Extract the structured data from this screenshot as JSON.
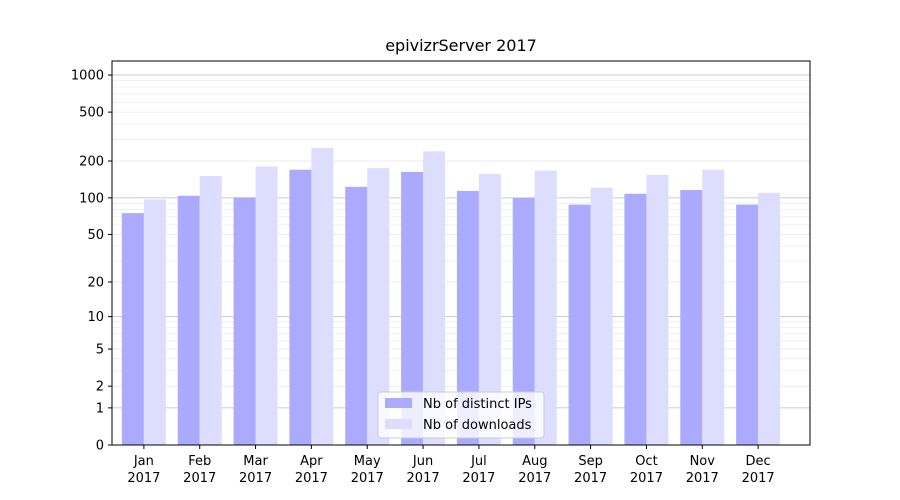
{
  "chart_data": {
    "type": "bar",
    "title": "epivizrServer 2017",
    "xlabel": "",
    "ylabel": "",
    "yscale": "symlog",
    "ylim": [
      0,
      1300
    ],
    "yticks": [
      0,
      1,
      2,
      5,
      10,
      20,
      50,
      100,
      200,
      500,
      1000
    ],
    "ytick_labels": [
      "0",
      "1",
      "2",
      "5",
      "10",
      "20",
      "50",
      "100",
      "200",
      "500",
      "1000"
    ],
    "categories": [
      [
        "Jan",
        "2017"
      ],
      [
        "Feb",
        "2017"
      ],
      [
        "Mar",
        "2017"
      ],
      [
        "Apr",
        "2017"
      ],
      [
        "May",
        "2017"
      ],
      [
        "Jun",
        "2017"
      ],
      [
        "Jul",
        "2017"
      ],
      [
        "Aug",
        "2017"
      ],
      [
        "Sep",
        "2017"
      ],
      [
        "Oct",
        "2017"
      ],
      [
        "Nov",
        "2017"
      ],
      [
        "Dec",
        "2017"
      ]
    ],
    "series": [
      {
        "name": "Nb of distinct IPs",
        "color": "#aaaaff",
        "values": [
          75,
          104,
          101,
          170,
          123,
          163,
          114,
          100,
          88,
          108,
          116,
          88
        ]
      },
      {
        "name": "Nb of downloads",
        "color": "#ddddff",
        "values": [
          97,
          151,
          180,
          255,
          175,
          240,
          157,
          167,
          121,
          154,
          170,
          110
        ]
      }
    ],
    "grid": true,
    "legend_position": "bottom-center"
  }
}
